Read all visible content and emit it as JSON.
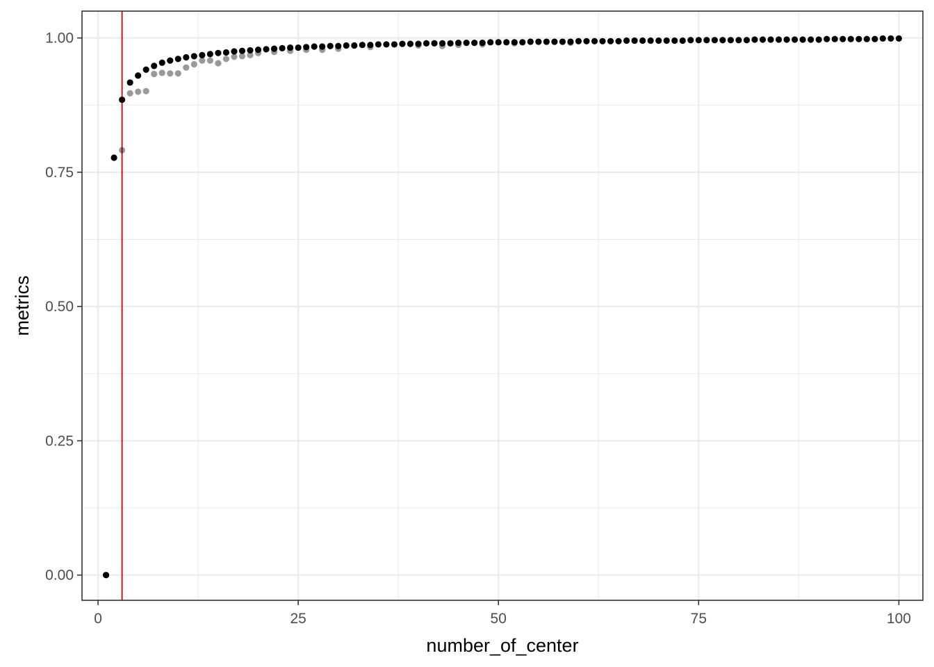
{
  "chart_data": {
    "type": "scatter",
    "title": "",
    "xlabel": "number_of_center",
    "ylabel": "metrics",
    "xlim": [
      -2,
      103
    ],
    "ylim": [
      -0.047,
      1.05
    ],
    "x_ticks": [
      0,
      25,
      50,
      75,
      100
    ],
    "x_tick_labels": [
      "0",
      "25",
      "50",
      "75",
      "100"
    ],
    "y_ticks": [
      0,
      0.25,
      0.5,
      0.75,
      1.0
    ],
    "y_tick_labels": [
      "0.00",
      "0.25",
      "0.50",
      "0.75",
      "1.00"
    ],
    "grid": true,
    "theme": "white background with light grey major and minor gridlines, dark panel border",
    "point_color": "#000000",
    "vline": {
      "x": 3,
      "color": "#cc0000"
    },
    "series": [
      {
        "values": [
          [
            1,
            0.0
          ],
          [
            2,
            0.777
          ],
          [
            3,
            0.885
          ],
          [
            4,
            0.917
          ],
          [
            5,
            0.93
          ],
          [
            6,
            0.941
          ],
          [
            7,
            0.948
          ],
          [
            8,
            0.954
          ],
          [
            9,
            0.958
          ],
          [
            10,
            0.961
          ],
          [
            11,
            0.964
          ],
          [
            12,
            0.966
          ],
          [
            13,
            0.968
          ],
          [
            14,
            0.97
          ],
          [
            15,
            0.972
          ],
          [
            16,
            0.973
          ],
          [
            17,
            0.975
          ],
          [
            18,
            0.976
          ],
          [
            19,
            0.977
          ],
          [
            20,
            0.978
          ],
          [
            21,
            0.979
          ],
          [
            22,
            0.98
          ],
          [
            23,
            0.981
          ],
          [
            24,
            0.982
          ],
          [
            25,
            0.982
          ],
          [
            26,
            0.983
          ],
          [
            27,
            0.984
          ],
          [
            28,
            0.984
          ],
          [
            29,
            0.985
          ],
          [
            30,
            0.985
          ],
          [
            31,
            0.986
          ],
          [
            32,
            0.986
          ],
          [
            33,
            0.987
          ],
          [
            34,
            0.987
          ],
          [
            35,
            0.988
          ],
          [
            36,
            0.988
          ],
          [
            37,
            0.988
          ],
          [
            38,
            0.989
          ],
          [
            39,
            0.989
          ],
          [
            40,
            0.989
          ],
          [
            41,
            0.99
          ],
          [
            42,
            0.99
          ],
          [
            43,
            0.99
          ],
          [
            44,
            0.99
          ],
          [
            45,
            0.991
          ],
          [
            46,
            0.991
          ],
          [
            47,
            0.991
          ],
          [
            48,
            0.991
          ],
          [
            49,
            0.992
          ],
          [
            50,
            0.992
          ],
          [
            51,
            0.992
          ],
          [
            52,
            0.992
          ],
          [
            53,
            0.992
          ],
          [
            54,
            0.993
          ],
          [
            55,
            0.993
          ],
          [
            56,
            0.993
          ],
          [
            57,
            0.993
          ],
          [
            58,
            0.993
          ],
          [
            59,
            0.993
          ],
          [
            60,
            0.994
          ],
          [
            61,
            0.994
          ],
          [
            62,
            0.994
          ],
          [
            63,
            0.994
          ],
          [
            64,
            0.994
          ],
          [
            65,
            0.994
          ],
          [
            66,
            0.995
          ],
          [
            67,
            0.995
          ],
          [
            68,
            0.995
          ],
          [
            69,
            0.995
          ],
          [
            70,
            0.995
          ],
          [
            71,
            0.995
          ],
          [
            72,
            0.995
          ],
          [
            73,
            0.995
          ],
          [
            74,
            0.996
          ],
          [
            75,
            0.996
          ],
          [
            76,
            0.996
          ],
          [
            77,
            0.996
          ],
          [
            78,
            0.996
          ],
          [
            79,
            0.996
          ],
          [
            80,
            0.996
          ],
          [
            81,
            0.996
          ],
          [
            82,
            0.997
          ],
          [
            83,
            0.997
          ],
          [
            84,
            0.997
          ],
          [
            85,
            0.997
          ],
          [
            86,
            0.997
          ],
          [
            87,
            0.997
          ],
          [
            88,
            0.997
          ],
          [
            89,
            0.997
          ],
          [
            90,
            0.997
          ],
          [
            91,
            0.998
          ],
          [
            92,
            0.998
          ],
          [
            93,
            0.998
          ],
          [
            94,
            0.998
          ],
          [
            95,
            0.998
          ],
          [
            96,
            0.998
          ],
          [
            97,
            0.998
          ],
          [
            98,
            0.999
          ],
          [
            99,
            0.999
          ],
          [
            100,
            0.999
          ]
        ]
      },
      {
        "values": [
          [
            1,
            0.0
          ],
          [
            3,
            0.791
          ],
          [
            4,
            0.897
          ],
          [
            5,
            0.9
          ],
          [
            6,
            0.901
          ],
          [
            7,
            0.933
          ],
          [
            8,
            0.935
          ],
          [
            9,
            0.934
          ],
          [
            10,
            0.934
          ],
          [
            11,
            0.945
          ],
          [
            12,
            0.951
          ],
          [
            13,
            0.958
          ],
          [
            14,
            0.958
          ],
          [
            15,
            0.953
          ],
          [
            16,
            0.961
          ],
          [
            17,
            0.965
          ],
          [
            18,
            0.966
          ],
          [
            19,
            0.968
          ],
          [
            20,
            0.972
          ],
          [
            22,
            0.974
          ],
          [
            24,
            0.976
          ],
          [
            26,
            0.978
          ],
          [
            28,
            0.978
          ],
          [
            30,
            0.98
          ],
          [
            34,
            0.983
          ],
          [
            40,
            0.986
          ],
          [
            43,
            0.985
          ],
          [
            45,
            0.987
          ],
          [
            48,
            0.988
          ],
          [
            52,
            0.99
          ],
          [
            59,
            0.991
          ]
        ]
      }
    ]
  }
}
